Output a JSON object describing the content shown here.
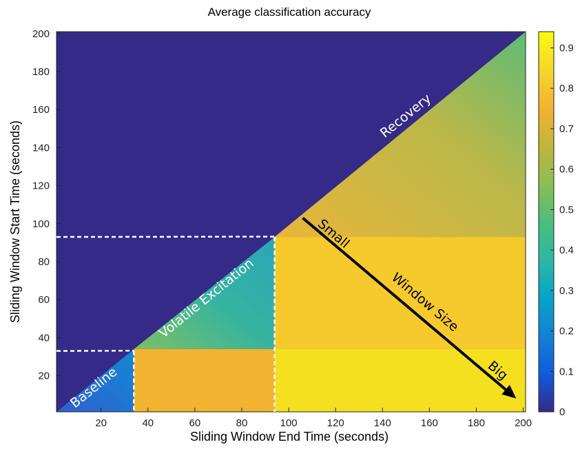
{
  "chart_data": {
    "type": "heatmap",
    "title": "Average classification accuracy",
    "xlabel": "Sliding Window End Time (seconds)",
    "ylabel": "Sliding Window Start Time (seconds)",
    "xlim": [
      1,
      201
    ],
    "ylim": [
      1,
      201
    ],
    "xticks": [
      20,
      40,
      60,
      80,
      100,
      120,
      140,
      160,
      180,
      200
    ],
    "yticks": [
      20,
      40,
      60,
      80,
      100,
      120,
      140,
      160,
      180,
      200
    ],
    "colorbar": {
      "min": 0,
      "max": 0.94,
      "ticks": [
        0,
        0.1,
        0.2,
        0.3,
        0.4,
        0.5,
        0.6,
        0.7,
        0.8,
        0.9
      ],
      "colormap": "parula",
      "low_color": "#352a87",
      "high_color": "#f9fb0e"
    },
    "regions": [
      {
        "name": "Baseline",
        "end_range": [
          1,
          34
        ],
        "start_range": [
          1,
          34
        ],
        "accuracy": 0.1
      },
      {
        "name": "Volatile Excitation",
        "end_range": [
          34,
          94
        ],
        "start_range": [
          34,
          93
        ],
        "accuracy": 0.5
      },
      {
        "name": "Recovery",
        "end_range": [
          94,
          201
        ],
        "start_range": [
          93,
          201
        ],
        "accuracy": 0.65
      },
      {
        "name": "",
        "end_range": [
          34,
          94
        ],
        "start_range": [
          1,
          34
        ],
        "accuracy": 0.78
      },
      {
        "name": "",
        "end_range": [
          94,
          201
        ],
        "start_range": [
          1,
          34
        ],
        "accuracy": 0.9
      },
      {
        "name": "",
        "end_range": [
          94,
          201
        ],
        "start_range": [
          34,
          93
        ],
        "accuracy": 0.8
      }
    ],
    "boundaries": [
      {
        "start_time": 33,
        "end_time": 34
      },
      {
        "start_time": 93,
        "end_time": 94
      }
    ],
    "annotations": {
      "baseline": "Baseline",
      "volatile": "Volatile Excitation",
      "recovery": "Recovery",
      "small": "Small",
      "window_size": "Window Size",
      "big": "Big"
    },
    "arrow": {
      "from": [
        106,
        103
      ],
      "to": [
        197,
        8
      ]
    }
  }
}
